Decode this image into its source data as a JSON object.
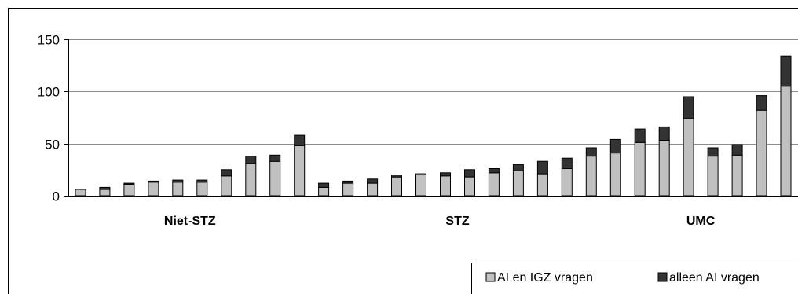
{
  "chart_data": {
    "type": "bar",
    "stacked": true,
    "ylim": [
      0,
      150
    ],
    "yticks": [
      0,
      50,
      100,
      150
    ],
    "grid": true,
    "legend_position": "bottom-right",
    "groups": [
      {
        "label": "Niet-STZ",
        "start": 0,
        "count": 10
      },
      {
        "label": "STZ",
        "start": 10,
        "count": 12
      },
      {
        "label": "UMC",
        "start": 22,
        "count": 8
      }
    ],
    "series": [
      {
        "name": "AI en IGZ vragen",
        "color": "#c0c0c0",
        "values": [
          6,
          6,
          11,
          13,
          13,
          13,
          19,
          31,
          33,
          48,
          8,
          12,
          12,
          18,
          21,
          19,
          18,
          22,
          24,
          21,
          26,
          38,
          41,
          51,
          53,
          74,
          38,
          39,
          82,
          105
        ]
      },
      {
        "name": "alleen AI vragen",
        "color": "#333333",
        "values": [
          0,
          2,
          1,
          1,
          2,
          2,
          6,
          7,
          6,
          10,
          4,
          2,
          4,
          2,
          0,
          3,
          7,
          4,
          6,
          12,
          10,
          8,
          13,
          13,
          13,
          21,
          8,
          10,
          14,
          29
        ]
      }
    ]
  }
}
